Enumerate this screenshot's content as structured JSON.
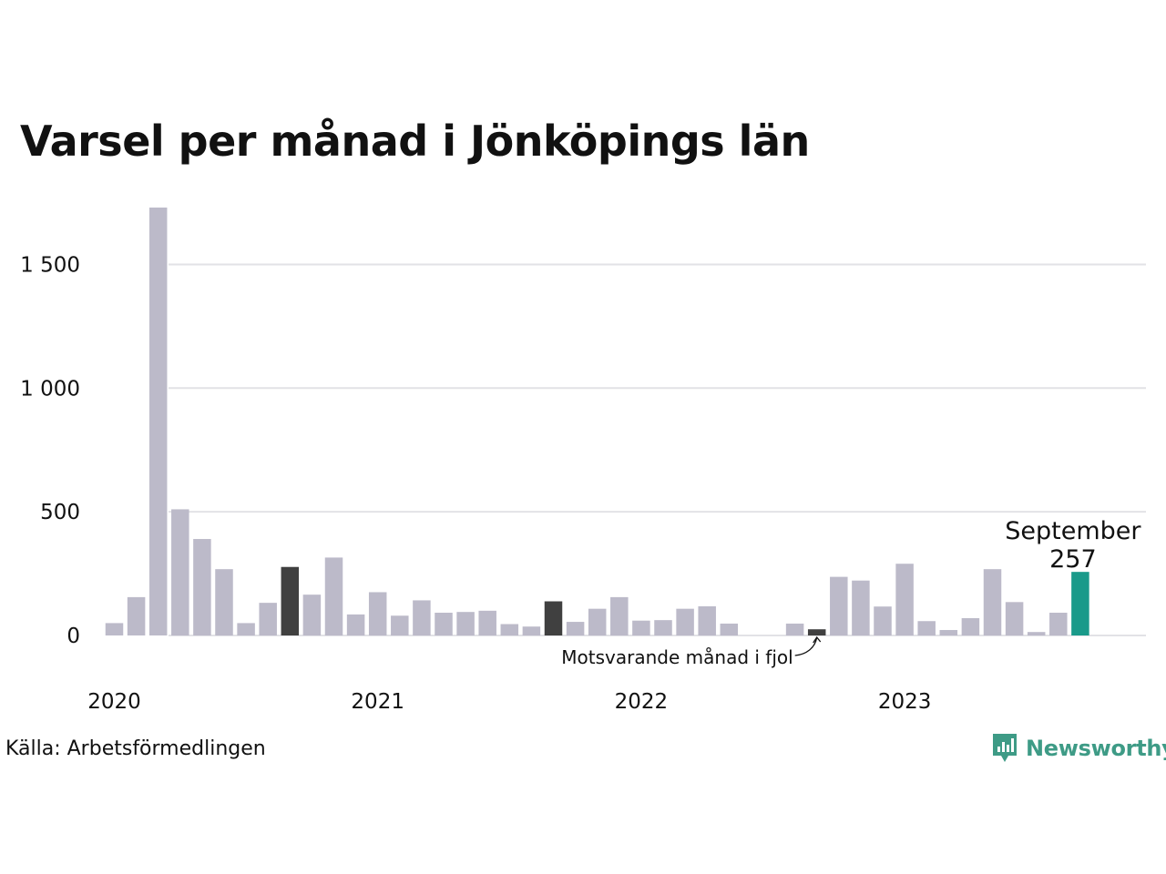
{
  "chart_data": {
    "type": "bar",
    "title": "Varsel per månad i Jönköpings län",
    "xlabel": "",
    "ylabel": "",
    "ylim": [
      0,
      1800
    ],
    "grid": true,
    "yticks": [
      {
        "value": 0,
        "label": "0"
      },
      {
        "value": 500,
        "label": "500"
      },
      {
        "value": 1000,
        "label": "1 000"
      },
      {
        "value": 1500,
        "label": "1 500"
      }
    ],
    "year_labels": [
      {
        "index": 0,
        "label": "2020"
      },
      {
        "index": 12,
        "label": "2021"
      },
      {
        "index": 24,
        "label": "2022"
      },
      {
        "index": 36,
        "label": "2023"
      }
    ],
    "months": [
      "2020-01",
      "2020-02",
      "2020-03",
      "2020-04",
      "2020-05",
      "2020-06",
      "2020-07",
      "2020-08",
      "2020-09",
      "2020-10",
      "2020-11",
      "2020-12",
      "2021-01",
      "2021-02",
      "2021-03",
      "2021-04",
      "2021-05",
      "2021-06",
      "2021-07",
      "2021-08",
      "2021-09",
      "2021-10",
      "2021-11",
      "2021-12",
      "2022-01",
      "2022-02",
      "2022-03",
      "2022-04",
      "2022-05",
      "2022-06",
      "2022-07",
      "2022-08",
      "2022-09",
      "2022-10",
      "2022-11",
      "2022-12",
      "2023-01",
      "2023-02",
      "2023-03",
      "2023-04",
      "2023-05",
      "2023-06",
      "2023-07",
      "2023-08",
      "2023-09"
    ],
    "values": [
      50,
      155,
      1730,
      510,
      390,
      268,
      50,
      132,
      277,
      165,
      315,
      85,
      175,
      80,
      142,
      92,
      95,
      100,
      46,
      36,
      138,
      55,
      108,
      155,
      60,
      62,
      108,
      118,
      48,
      0,
      0,
      48,
      25,
      237,
      222,
      117,
      290,
      58,
      22,
      70,
      268,
      135,
      14,
      92,
      257
    ],
    "highlight_same_month_previous_years": [
      8,
      20,
      32
    ],
    "current_index": 44,
    "current_label": "September",
    "current_value_label": "257",
    "annotation": "Motsvarande månad i fjol",
    "annotation_target_index": 32,
    "colors": {
      "bar": "#bcbac9",
      "previous_year": "#404040",
      "current": "#1a9a8a",
      "grid": "#e2e2e6"
    }
  },
  "footer": {
    "source": "Källa: Arbetsförmedlingen",
    "brand": "Newsworthy",
    "brand_color": "#3e9b86"
  }
}
